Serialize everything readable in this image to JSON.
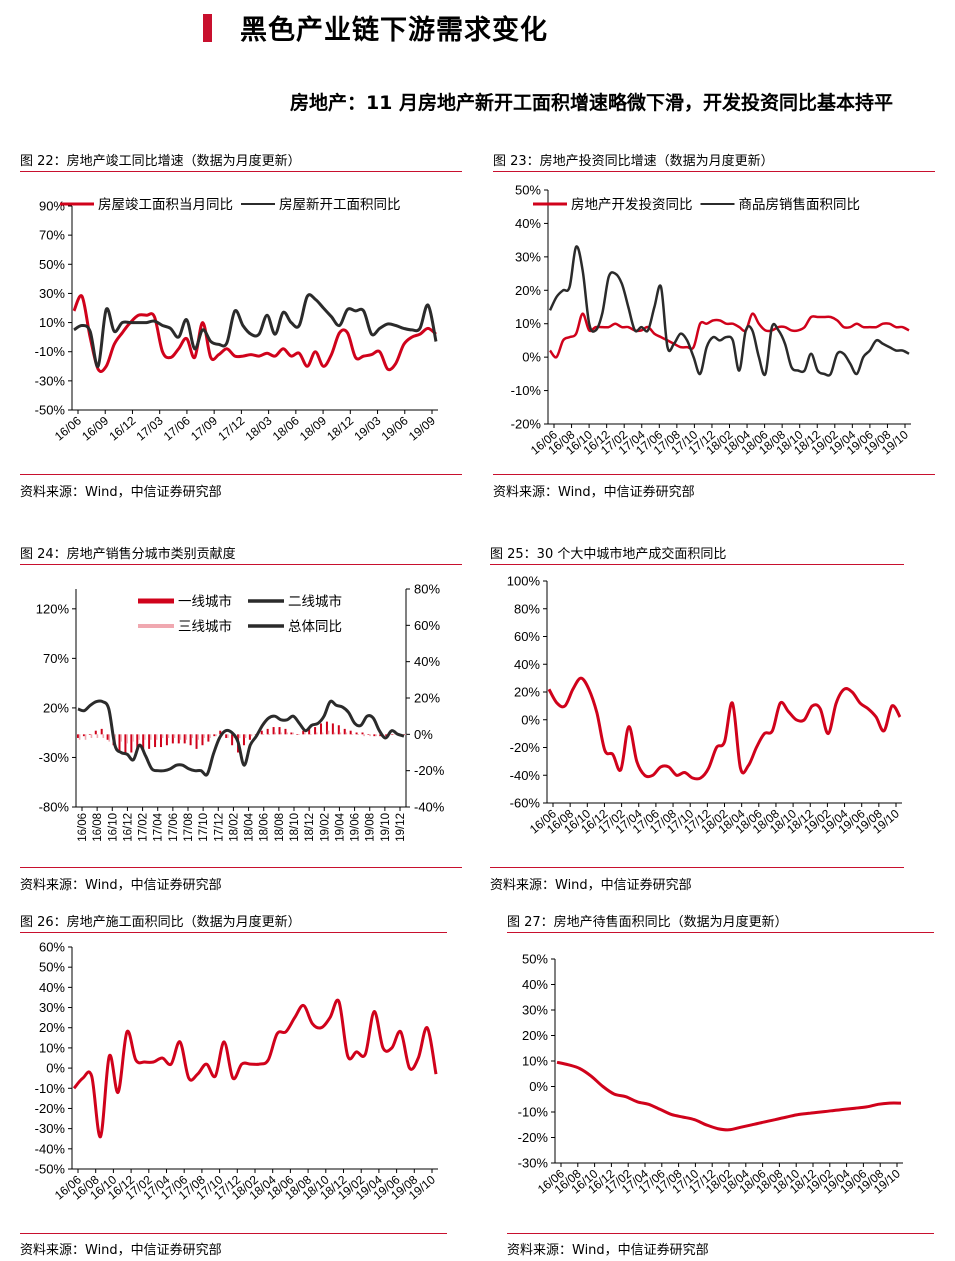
{
  "header": {
    "title": "黑色产业链下游需求变化",
    "subtitle": "房地产：11 月房地产新开工面积增速略微下滑，开发投资同比基本持平"
  },
  "colors": {
    "red": "#d0021b",
    "dark": "#2b2b2b",
    "pink": "#f0a8b0",
    "rule": "#c8102e"
  },
  "charts": [
    {
      "fig_title": "图 22：房地产竣工同比增速（数据为月度更新）",
      "source": "资料来源：Wind，中信证券研究部",
      "chart_data": {
        "type": "line",
        "legend": [
          "房屋竣工面积当月同比",
          "房屋新开工面积同比"
        ],
        "xtick_labels": [
          "16/06",
          "16/09",
          "16/12",
          "17/03",
          "17/06",
          "17/09",
          "17/12",
          "18/03",
          "18/06",
          "18/09",
          "18/12",
          "19/03",
          "19/06",
          "19/09"
        ],
        "ylim": [
          -50,
          90
        ],
        "yticks": [
          -50,
          -30,
          -10,
          10,
          30,
          50,
          70,
          90
        ],
        "ytick_labels": [
          "-50%",
          "-30%",
          "-10%",
          "10%",
          "30%",
          "50%",
          "70%",
          "90%"
        ],
        "series": [
          {
            "name": "房屋竣工面积当月同比",
            "color": "red",
            "values": [
              18,
              28,
              0,
              -22,
              -20,
              -5,
              3,
              10,
              15,
              15,
              14,
              -10,
              -14,
              -8,
              -1,
              -14,
              10,
              -14,
              -12,
              -8,
              -13,
              -13,
              -12,
              -13,
              -11,
              -13,
              -8,
              -13,
              -11,
              -20,
              -10,
              -20,
              -12,
              3,
              3,
              -14,
              -13,
              -12,
              -10,
              -22,
              -18,
              -5,
              0,
              2,
              6,
              2
            ]
          },
          {
            "name": "房屋新开工面积同比",
            "color": "dark",
            "values": [
              5,
              8,
              4,
              -20,
              19,
              4,
              10,
              10,
              10,
              10,
              11,
              8,
              6,
              0,
              12,
              -8,
              5,
              -3,
              -5,
              -4,
              18,
              8,
              2,
              2,
              15,
              2,
              17,
              10,
              8,
              28,
              26,
              20,
              14,
              8,
              19,
              18,
              18,
              2,
              6,
              9,
              8,
              6,
              5,
              6,
              22,
              -3
            ]
          }
        ]
      }
    },
    {
      "fig_title": "图 23：房地产投资同比增速（数据为月度更新）",
      "source": "资料来源：Wind，中信证券研究部",
      "chart_data": {
        "type": "line",
        "legend": [
          "房地产开发投资同比",
          "商品房销售面积同比"
        ],
        "xtick_labels": [
          "16/06",
          "16/08",
          "16/10",
          "16/12",
          "17/02",
          "17/04",
          "17/06",
          "17/08",
          "17/10",
          "17/12",
          "18/02",
          "18/04",
          "18/06",
          "18/08",
          "18/10",
          "18/12",
          "19/02",
          "19/04",
          "19/06",
          "19/08",
          "19/10"
        ],
        "ylim": [
          -20,
          50
        ],
        "yticks": [
          -20,
          -10,
          0,
          10,
          20,
          30,
          40,
          50
        ],
        "ytick_labels": [
          "-20%",
          "-10%",
          "0%",
          "10%",
          "20%",
          "30%",
          "40%",
          "50%"
        ],
        "series": [
          {
            "name": "房地产开发投资同比",
            "color": "red",
            "values": [
              2,
              0,
              5,
              6,
              7,
              13,
              8,
              9,
              9,
              9,
              10,
              9,
              9,
              8,
              8,
              9,
              7,
              6,
              5,
              4,
              3,
              3,
              3,
              10,
              10,
              11,
              11,
              10,
              10,
              9,
              8,
              13,
              10,
              8,
              8,
              9,
              9,
              8,
              8,
              9,
              12,
              12,
              12,
              12,
              11,
              9,
              9,
              10,
              9,
              9,
              9,
              10,
              10,
              9,
              9,
              8
            ]
          },
          {
            "name": "商品房销售面积同比",
            "color": "dark",
            "values": [
              14,
              18,
              20,
              21,
              33,
              26,
              10,
              8,
              13,
              24,
              25,
              22,
              15,
              8,
              9,
              8,
              15,
              21,
              3,
              4,
              7,
              5,
              0,
              -5,
              3,
              6,
              5,
              6,
              5,
              -4,
              8,
              8,
              0,
              -5,
              9,
              8,
              4,
              -3,
              -4,
              -4,
              1,
              -4,
              -5,
              -5,
              1,
              1,
              -2,
              -5,
              0,
              2,
              5,
              4,
              3,
              2,
              2,
              1
            ]
          }
        ]
      }
    },
    {
      "fig_title": "图 24：房地产销售分城市类别贡献度",
      "source": "资料来源：Wind，中信证券研究部",
      "chart_data": {
        "type": "bar+line",
        "legend": [
          "一线城市",
          "二线城市",
          "三线城市",
          "总体同比"
        ],
        "xtick_labels": [
          "16/06",
          "16/08",
          "16/10",
          "16/12",
          "17/02",
          "17/04",
          "17/06",
          "17/08",
          "17/10",
          "17/12",
          "18/02",
          "18/04",
          "18/06",
          "18/08",
          "18/10",
          "18/12",
          "19/02",
          "19/04",
          "19/06",
          "19/08",
          "19/10",
          "19/12"
        ],
        "ylim_left": [
          -80,
          140
        ],
        "yticks_left": [
          -80,
          -30,
          20,
          70,
          120
        ],
        "ytick_labels_left": [
          "-80%",
          "-30%",
          "20%",
          "70%",
          "120%"
        ],
        "ylim_right": [
          -40,
          80
        ],
        "yticks_right": [
          -40,
          -20,
          0,
          20,
          40,
          60,
          80
        ],
        "ytick_labels_right": [
          "-40%",
          "-20%",
          "0%",
          "20%",
          "40%",
          "60%",
          "80%"
        ],
        "bars_first_tier": [
          -2,
          -1,
          0,
          2,
          3,
          -3,
          -6,
          -9,
          -10,
          -10,
          -8,
          -9,
          -8,
          -7,
          -7,
          -6,
          -5,
          -5,
          -5,
          -6,
          -8,
          -6,
          -4,
          -1,
          2,
          -2,
          -6,
          -10,
          -6,
          -3,
          0,
          2,
          3,
          4,
          4,
          3,
          1,
          0,
          2,
          3,
          4,
          6,
          7,
          6,
          5,
          3,
          2,
          1,
          1,
          0,
          -1,
          -1,
          -1,
          0,
          0,
          0
        ],
        "bars_third_tier": [
          -3,
          -3,
          -2,
          -2,
          -2,
          -4,
          -5,
          -4,
          -5,
          -4,
          -3,
          -3,
          -3,
          -3,
          -2,
          -2,
          -2,
          -3,
          -3,
          -2,
          -3,
          -2,
          -2,
          -1,
          -1,
          -2,
          -2,
          -2,
          -2,
          -1,
          -1,
          0,
          0,
          1,
          1,
          1,
          1,
          0,
          1,
          0,
          1,
          1,
          2,
          1,
          1,
          1,
          0,
          0,
          -1,
          -1,
          -1,
          -1,
          0,
          0,
          0,
          0
        ],
        "series": [
          {
            "name": "总体同比",
            "axis": "right",
            "color": "dark",
            "values": [
              14,
              13,
              16,
              18,
              18,
              14,
              -6,
              -10,
              -11,
              -14,
              -6,
              -12,
              -19,
              -20,
              -20,
              -19,
              -17,
              -17,
              -19,
              -20,
              -20,
              -22,
              -11,
              -2,
              2,
              1,
              -4,
              -17,
              -6,
              -1,
              5,
              9,
              10,
              8,
              8,
              10,
              6,
              2,
              5,
              6,
              10,
              18,
              16,
              15,
              12,
              6,
              5,
              10,
              9,
              2,
              -2,
              2,
              0,
              -1
            ]
          }
        ]
      }
    },
    {
      "fig_title": "图 25：30 个大中城市地产成交面积同比",
      "source": "资料来源：Wind，中信证券研究部",
      "chart_data": {
        "type": "line",
        "xtick_labels": [
          "16/06",
          "16/08",
          "16/10",
          "16/12",
          "17/02",
          "17/04",
          "17/06",
          "17/08",
          "17/10",
          "17/12",
          "18/02",
          "18/04",
          "18/06",
          "18/08",
          "18/10",
          "18/12",
          "19/02",
          "19/04",
          "19/06",
          "19/08",
          "19/10"
        ],
        "ylim": [
          -60,
          100
        ],
        "yticks": [
          -60,
          -40,
          -20,
          0,
          20,
          40,
          60,
          80,
          100
        ],
        "ytick_labels": [
          "-60%",
          "-40%",
          "-20%",
          "0%",
          "20%",
          "40%",
          "60%",
          "80%",
          "100%"
        ],
        "series": [
          {
            "name": "",
            "color": "red",
            "values": [
              22,
              12,
              10,
              22,
              30,
              22,
              5,
              -22,
              -25,
              -36,
              -5,
              -30,
              -40,
              -40,
              -34,
              -34,
              -40,
              -38,
              -42,
              -42,
              -35,
              -20,
              -16,
              12,
              -35,
              -33,
              -20,
              -10,
              -8,
              12,
              6,
              0,
              0,
              10,
              8,
              -10,
              12,
              22,
              20,
              12,
              8,
              2,
              -8,
              10,
              2
            ]
          }
        ]
      }
    },
    {
      "fig_title": "图 26：房地产施工面积同比（数据为月度更新）",
      "source": "资料来源：Wind，中信证券研究部",
      "chart_data": {
        "type": "line",
        "xtick_labels": [
          "16/06",
          "16/08",
          "16/10",
          "16/12",
          "17/02",
          "17/04",
          "17/06",
          "17/08",
          "17/10",
          "17/12",
          "18/02",
          "18/04",
          "18/06",
          "18/08",
          "18/10",
          "18/12",
          "19/02",
          "19/04",
          "19/06",
          "19/08",
          "19/10"
        ],
        "ylim": [
          -50,
          60
        ],
        "yticks": [
          -50,
          -40,
          -30,
          -20,
          -10,
          0,
          10,
          20,
          30,
          40,
          50,
          60
        ],
        "ytick_labels": [
          "-50%",
          "-40%",
          "-30%",
          "-20%",
          "-10%",
          "0%",
          "10%",
          "20%",
          "30%",
          "40%",
          "50%",
          "60%"
        ],
        "series": [
          {
            "name": "",
            "color": "red",
            "values": [
              -10,
              -5,
              -4,
              -34,
              6,
              -12,
              18,
              4,
              3,
              3,
              5,
              2,
              13,
              -5,
              -3,
              2,
              -4,
              13,
              -5,
              2,
              2,
              2,
              4,
              17,
              18,
              25,
              31,
              22,
              20,
              25,
              33,
              6,
              8,
              7,
              28,
              10,
              10,
              18,
              0,
              5,
              20,
              -3
            ]
          }
        ]
      }
    },
    {
      "fig_title": "图 27：房地产待售面积同比（数据为月度更新）",
      "source": "资料来源：Wind，中信证券研究部",
      "chart_data": {
        "type": "line",
        "xtick_labels": [
          "16/06",
          "16/08",
          "16/10",
          "16/12",
          "17/02",
          "17/04",
          "17/06",
          "17/08",
          "17/10",
          "17/12",
          "18/02",
          "18/04",
          "18/06",
          "18/08",
          "18/10",
          "18/12",
          "19/02",
          "19/04",
          "19/06",
          "19/08",
          "19/10"
        ],
        "ylim": [
          -30,
          50
        ],
        "yticks": [
          -30,
          -20,
          -10,
          0,
          10,
          20,
          30,
          40,
          50
        ],
        "ytick_labels": [
          "-30%",
          "-20%",
          "-10%",
          "0%",
          "10%",
          "20%",
          "30%",
          "40%",
          "50%"
        ],
        "series": [
          {
            "name": "",
            "color": "red",
            "values": [
              9.5,
              8.5,
              7,
              4,
              0,
              -3,
              -4,
              -6,
              -7,
              -9,
              -11,
              -12,
              -13,
              -15,
              -16.5,
              -17,
              -16,
              -15,
              -14,
              -13,
              -12,
              -11,
              -10.5,
              -10,
              -9.5,
              -9,
              -8.5,
              -8,
              -7,
              -6.5,
              -6.5
            ]
          }
        ]
      }
    }
  ]
}
